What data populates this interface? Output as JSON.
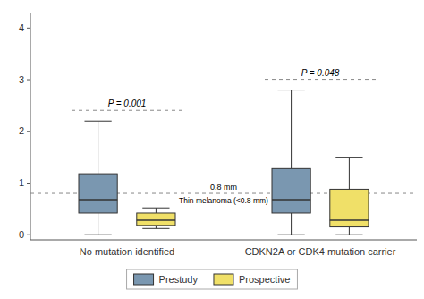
{
  "chart_data": {
    "type": "box",
    "categories": [
      "No mutation identified",
      "CDKN2A or CDK4 mutation carrier"
    ],
    "series": [
      {
        "name": "Prestudy",
        "color": "#7a97b0",
        "values": [
          {
            "median": 0.68,
            "q1": 0.42,
            "q3": 1.18,
            "whislo": 0.0,
            "whishi": 2.2
          },
          {
            "median": 0.68,
            "q1": 0.42,
            "q3": 1.28,
            "whislo": 0.0,
            "whishi": 2.8
          }
        ]
      },
      {
        "name": "Prospective",
        "color": "#f0e068",
        "values": [
          {
            "median": 0.28,
            "q1": 0.18,
            "q3": 0.42,
            "whislo": 0.12,
            "whishi": 0.52
          },
          {
            "median": 0.28,
            "q1": 0.15,
            "q3": 0.88,
            "whislo": 0.0,
            "whishi": 1.5
          }
        ]
      }
    ],
    "reference_lines": [
      {
        "y": 0.8,
        "label": "0.8 mm",
        "sublabel": "Thin melanoma (<0.8 mm)"
      }
    ],
    "p_values": [
      "P = 0.001",
      "P = 0.048"
    ],
    "ylim": [
      -0.1,
      4.3
    ],
    "yticks": [
      0,
      1,
      2,
      3,
      4
    ],
    "grid": false,
    "legend": "bottom"
  }
}
